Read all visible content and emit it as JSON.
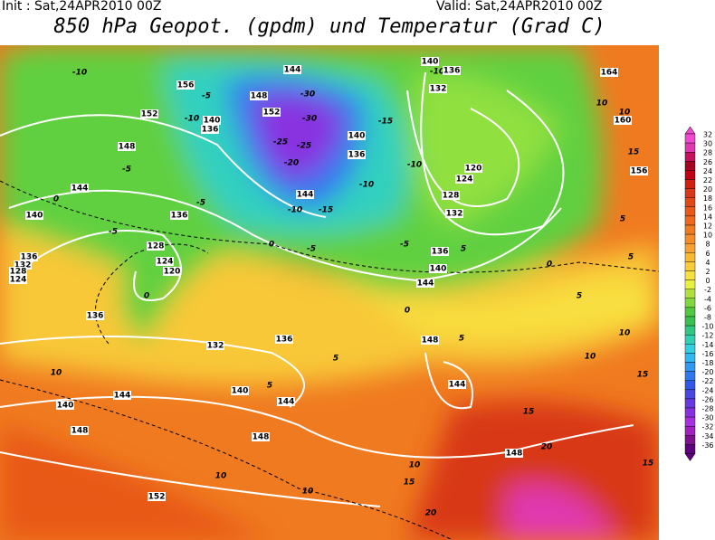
{
  "header": {
    "init": "Init : Sat,24APR2010 00Z",
    "valid": "Valid: Sat,24APR2010 00Z",
    "title": "850 hPa Geopot. (gpdm) und Temperatur (Grad C)"
  },
  "colorbar": {
    "levels": [
      32,
      30,
      28,
      26,
      24,
      22,
      20,
      18,
      16,
      14,
      12,
      10,
      8,
      6,
      4,
      2,
      0,
      -2,
      -4,
      -6,
      -8,
      -10,
      -12,
      -14,
      -16,
      -18,
      -20,
      -22,
      -24,
      -26,
      -28,
      -30,
      -32,
      -34,
      -36
    ],
    "colors": [
      "#f048d0",
      "#e038b0",
      "#c81060",
      "#a80020",
      "#c00010",
      "#d02010",
      "#d83818",
      "#e04818",
      "#e85818",
      "#f06820",
      "#f07a20",
      "#f48c28",
      "#f8a030",
      "#f8b830",
      "#f8cc38",
      "#f8e040",
      "#e8f040",
      "#b0e040",
      "#80d840",
      "#50c840",
      "#38c050",
      "#30c880",
      "#30d0b0",
      "#30d0e0",
      "#30b8f0",
      "#3098f0",
      "#3078f0",
      "#3058e8",
      "#4848e0",
      "#6838e0",
      "#8830e0",
      "#a830e0",
      "#a020c0",
      "#801090",
      "#600080"
    ]
  },
  "contour_labels": [
    -10,
    156,
    152,
    -10,
    -5,
    148,
    -5,
    144,
    0,
    140,
    -5,
    136,
    -5,
    128,
    124,
    120,
    136,
    132,
    128,
    124,
    0,
    136,
    132,
    136,
    140,
    5,
    144,
    10,
    140,
    144,
    148,
    148,
    10,
    152,
    10,
    15,
    20,
    10,
    148,
    20,
    15,
    144,
    148,
    5,
    0,
    144,
    140,
    136,
    -5,
    132,
    128,
    124,
    120,
    -10,
    -10,
    136,
    140,
    -15,
    -10,
    -15,
    144,
    -20,
    -25,
    -30,
    -30,
    -25,
    152,
    148,
    144,
    140,
    136,
    0,
    -5,
    140,
    -10,
    136,
    132,
    164,
    160,
    10,
    10,
    15,
    156,
    5,
    5,
    0,
    5,
    10,
    10,
    15,
    15,
    5,
    5
  ]
}
